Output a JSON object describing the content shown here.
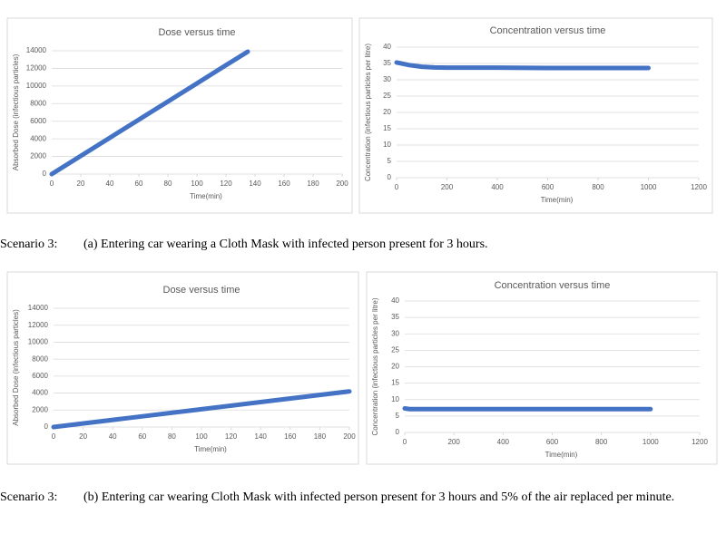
{
  "chart_data": [
    {
      "type": "line",
      "title": "Dose versus time",
      "xlabel": "Time(min)",
      "ylabel": "Absorbed Dose (infectious particles)",
      "x": [
        0,
        20,
        40,
        60,
        80,
        100,
        120,
        135
      ],
      "values": [
        0,
        2060,
        4120,
        6180,
        8240,
        10300,
        12360,
        13900
      ],
      "color": "#4472c4",
      "xlim": [
        0,
        200
      ],
      "xticks": [
        0,
        20,
        40,
        60,
        80,
        100,
        120,
        140,
        160,
        180,
        200
      ],
      "ylim": [
        0,
        14000
      ],
      "yticks": [
        0,
        2000,
        4000,
        6000,
        8000,
        10000,
        12000,
        14000
      ],
      "grid": true
    },
    {
      "type": "line",
      "title": "Concentration versus time",
      "xlabel": "Time(min)",
      "ylabel": "Concentration (infectious particles per litre)",
      "x": [
        0,
        25,
        50,
        100,
        150,
        200,
        400,
        600,
        800,
        1000
      ],
      "values": [
        35.3,
        34.9,
        34.5,
        34.0,
        33.8,
        33.7,
        33.7,
        33.6,
        33.6,
        33.6
      ],
      "color": "#4472c4",
      "xlim": [
        0,
        1200
      ],
      "xticks": [
        0,
        200,
        400,
        600,
        800,
        1000,
        1200
      ],
      "ylim": [
        0,
        40
      ],
      "yticks": [
        0,
        5,
        10,
        15,
        20,
        25,
        30,
        35,
        40
      ],
      "grid": true
    },
    {
      "type": "line",
      "title": "Dose versus time",
      "xlabel": "Time(min)",
      "ylabel": "Absorbed Dose (infectious particles)",
      "x": [
        0,
        50,
        100,
        150,
        200
      ],
      "values": [
        0,
        1050,
        2100,
        3150,
        4200
      ],
      "color": "#4472c4",
      "xlim": [
        0,
        200
      ],
      "xticks": [
        0,
        20,
        40,
        60,
        80,
        100,
        120,
        140,
        160,
        180,
        200
      ],
      "ylim": [
        0,
        14000
      ],
      "yticks": [
        0,
        2000,
        4000,
        6000,
        8000,
        10000,
        12000,
        14000
      ],
      "grid": true
    },
    {
      "type": "line",
      "title": "Concentration versus time",
      "xlabel": "Time(min)",
      "ylabel": "Concentration (infectious particles per litre)",
      "x": [
        0,
        20,
        200,
        600,
        1000
      ],
      "values": [
        7.3,
        7.1,
        7.1,
        7.1,
        7.1
      ],
      "color": "#4472c4",
      "xlim": [
        0,
        1200
      ],
      "xticks": [
        0,
        200,
        400,
        600,
        800,
        1000,
        1200
      ],
      "ylim": [
        0,
        40
      ],
      "yticks": [
        0,
        5,
        10,
        15,
        20,
        25,
        30,
        35,
        40
      ],
      "grid": true
    }
  ],
  "captions": [
    {
      "label": "Scenario 3:",
      "text": "(a) Entering car wearing a Cloth Mask with infected person present for 3 hours."
    },
    {
      "label": "Scenario 3:",
      "text": "(b) Entering car wearing Cloth Mask with infected person present for 3 hours and 5% of the air replaced per minute."
    }
  ]
}
